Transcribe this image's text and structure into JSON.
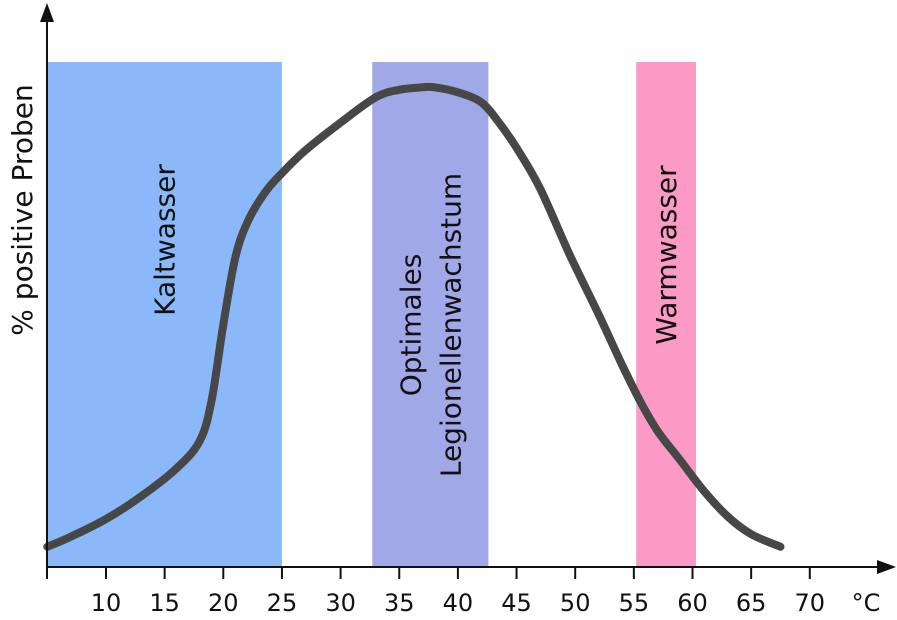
{
  "chart_data": {
    "type": "line",
    "ylabel": "% positive Proben",
    "x_unit": "°C",
    "x_ticks": [
      10,
      15,
      20,
      25,
      30,
      35,
      40,
      45,
      50,
      55,
      60,
      65,
      70
    ],
    "xlim": [
      5,
      75
    ],
    "ylim": [
      0,
      100
    ],
    "grid": false,
    "bands": [
      {
        "label_lines": [
          "Kaltwasser"
        ],
        "x_start": 5,
        "x_end": 25,
        "color": "#8ab8f8"
      },
      {
        "label_lines": [
          "Optimales",
          "Legionellenwachstum"
        ],
        "x_start": 32.7,
        "x_end": 42.6,
        "color": "#a0a8e8"
      },
      {
        "label_lines": [
          "Warmwasser"
        ],
        "x_start": 55.2,
        "x_end": 60.3,
        "color": "#fb9ac4"
      }
    ],
    "series": [
      {
        "color": "#474747",
        "points": [
          [
            5,
            4
          ],
          [
            7,
            6
          ],
          [
            10,
            9.5
          ],
          [
            13,
            14
          ],
          [
            16,
            19.5
          ],
          [
            18,
            25
          ],
          [
            19,
            33
          ],
          [
            20,
            48
          ],
          [
            21,
            61
          ],
          [
            22,
            68
          ],
          [
            23.5,
            74
          ],
          [
            25,
            78
          ],
          [
            27,
            82.5
          ],
          [
            30,
            88
          ],
          [
            33,
            93
          ],
          [
            35,
            94.5
          ],
          [
            37,
            95
          ],
          [
            38,
            95
          ],
          [
            40,
            94
          ],
          [
            42,
            92
          ],
          [
            43.5,
            88
          ],
          [
            45,
            83
          ],
          [
            47,
            75
          ],
          [
            49.5,
            62
          ],
          [
            52,
            50
          ],
          [
            54,
            40
          ],
          [
            55.5,
            33
          ],
          [
            57,
            27
          ],
          [
            59,
            21
          ],
          [
            61,
            15
          ],
          [
            63,
            10
          ],
          [
            65,
            6.5
          ],
          [
            67.5,
            4
          ]
        ]
      }
    ]
  }
}
